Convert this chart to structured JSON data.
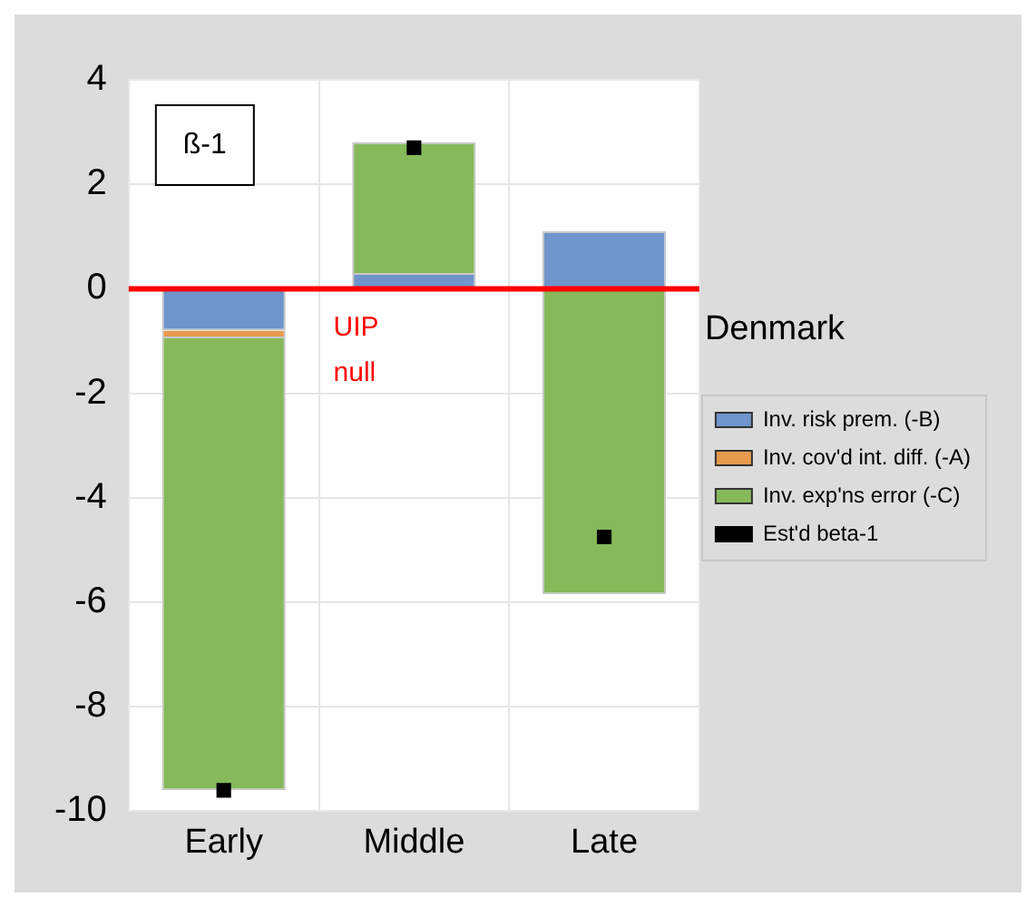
{
  "chart_data": {
    "type": "bar",
    "title": "Denmark",
    "categories": [
      "Early",
      "Middle",
      "Late"
    ],
    "stacked": true,
    "series": [
      {
        "name": "Inv. risk prem. (-B)",
        "color": "#6f95cc",
        "values": [
          -0.8,
          0.3,
          1.1
        ]
      },
      {
        "name": "Inv. cov'd int. diff. (-A)",
        "color": "#e69a4e",
        "values": [
          -0.15,
          null,
          null
        ]
      },
      {
        "name": "Inv. exp'ns error (-C)",
        "color": "#86b95a",
        "values": [
          -8.65,
          2.5,
          -5.85
        ]
      },
      {
        "name": "Est'd beta-1",
        "type": "scatter",
        "color": "#000000",
        "x": [
          "Early",
          "Middle",
          "Late"
        ],
        "values": [
          -9.6,
          2.7,
          -4.75
        ]
      }
    ],
    "ylim": [
      -10,
      4
    ],
    "yticks": [
      -10,
      -8,
      -6,
      -4,
      -2,
      0,
      2,
      4
    ],
    "grid": true,
    "legend": "right",
    "marker": "square",
    "ref_lines": [
      {
        "axis": "y",
        "value": 0,
        "label": "UIP null",
        "color": "#ff0000"
      }
    ],
    "annotations": [
      "ß-1"
    ]
  }
}
